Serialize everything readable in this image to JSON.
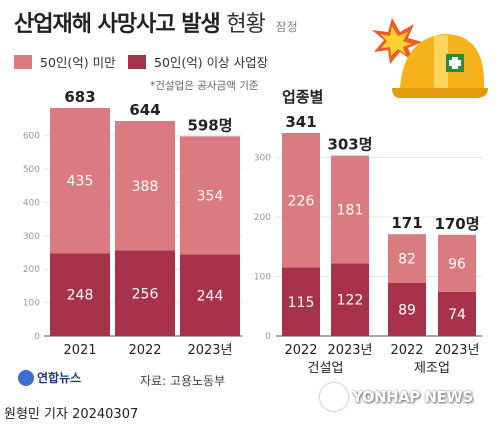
{
  "title": {
    "main": "산업재해 사망사고 발생",
    "light": "현황",
    "sub": "잠정"
  },
  "legend": [
    {
      "label": "50인(억) 미만",
      "color": "#d97b80"
    },
    {
      "label": "50인(억) 이상 사업장",
      "color": "#a8324a"
    }
  ],
  "note": "*건설업은 공사금액 기준",
  "sector_heading": "업종별",
  "source": "자료: 고용노동부",
  "logo_text": "연합뉴스",
  "byline": "원형민 기자  20240307",
  "watermark": "YONHAP NEWS",
  "colors": {
    "under50": "#d97b80",
    "over50": "#a8324a",
    "axis": "#999999",
    "grid": "#e6e6e6"
  },
  "chart_data": [
    {
      "type": "bar",
      "stacked": true,
      "categories": [
        "2021",
        "2022",
        "2023년"
      ],
      "series": [
        {
          "name": "50인(억) 이상 사업장",
          "values": [
            248,
            256,
            244
          ]
        },
        {
          "name": "50인(억) 미만",
          "values": [
            435,
            388,
            354
          ]
        }
      ],
      "totals": [
        "683",
        "644",
        "598명"
      ],
      "yticks": [
        0,
        100,
        200,
        300,
        400,
        500,
        600
      ],
      "ylim": [
        0,
        683
      ],
      "grid": true
    },
    {
      "type": "bar",
      "stacked": true,
      "groups": [
        "건설업",
        "제조업"
      ],
      "categories": [
        "2022",
        "2023년",
        "2022",
        "2023년"
      ],
      "series": [
        {
          "name": "50인(억) 이상 사업장",
          "values": [
            115,
            122,
            89,
            74
          ]
        },
        {
          "name": "50인(억) 미만",
          "values": [
            226,
            181,
            82,
            96
          ]
        }
      ],
      "totals": [
        "341",
        "303명",
        "171",
        "170명"
      ],
      "yticks": [
        0,
        100,
        200,
        300
      ],
      "ylim": [
        0,
        341
      ],
      "grid": true
    }
  ]
}
